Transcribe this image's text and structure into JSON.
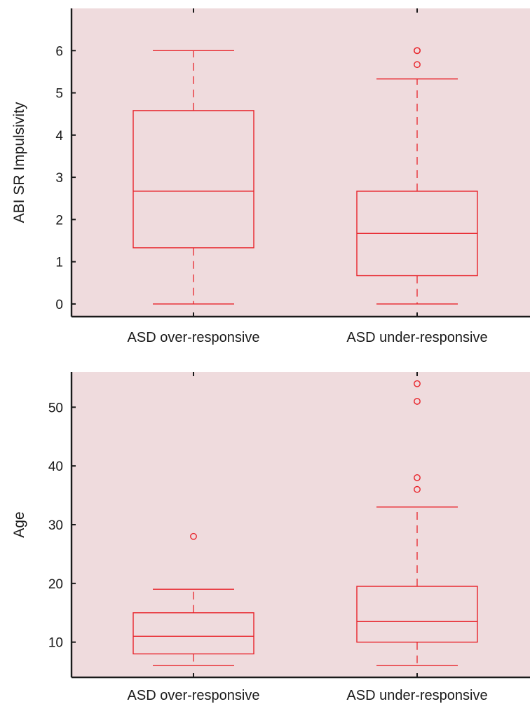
{
  "colors": {
    "background": "#ffffff",
    "plot_area": "#efdbdd",
    "box": "#e8242b",
    "axis": "#1a1a1a"
  },
  "chart_data": [
    {
      "type": "box",
      "title": "",
      "xlabel": "",
      "ylabel": "ABI SR Impulsivity",
      "ylim": [
        -0.3,
        7.0
      ],
      "yticks": [
        0,
        1,
        2,
        3,
        4,
        5,
        6
      ],
      "ytick_labels": [
        "0",
        "1",
        "2",
        "3",
        "4",
        "5",
        "6"
      ],
      "categories": [
        "ASD over-responsive",
        "ASD under-responsive"
      ],
      "boxes": [
        {
          "whisker_low": 0,
          "q1": 1.33,
          "median": 2.67,
          "q3": 4.58,
          "whisker_high": 6.0,
          "outliers": []
        },
        {
          "whisker_low": 0,
          "q1": 0.67,
          "median": 1.67,
          "q3": 2.67,
          "whisker_high": 5.33,
          "outliers": [
            5.67,
            6.0,
            6.0
          ]
        }
      ]
    },
    {
      "type": "box",
      "title": "",
      "xlabel": "",
      "ylabel": "Age",
      "ylim": [
        4,
        56
      ],
      "yticks": [
        10,
        20,
        30,
        40,
        50
      ],
      "ytick_labels": [
        "10",
        "20",
        "30",
        "40",
        "50"
      ],
      "categories": [
        "ASD over-responsive",
        "ASD under-responsive"
      ],
      "boxes": [
        {
          "whisker_low": 6,
          "q1": 8,
          "median": 11,
          "q3": 15,
          "whisker_high": 19,
          "outliers": [
            28
          ]
        },
        {
          "whisker_low": 6,
          "q1": 10,
          "median": 13.5,
          "q3": 19.5,
          "whisker_high": 33,
          "outliers": [
            36,
            38,
            51,
            54
          ]
        }
      ]
    }
  ]
}
